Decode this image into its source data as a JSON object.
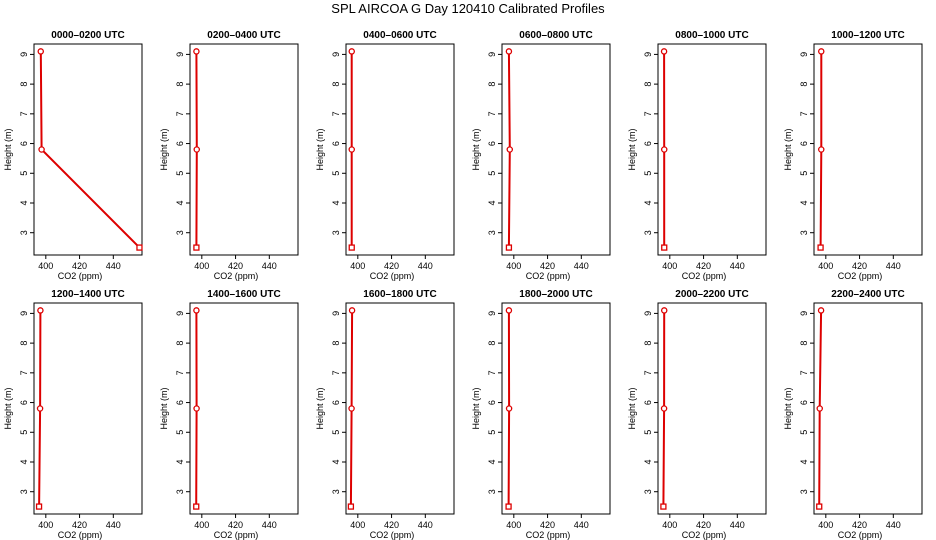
{
  "title": "SPL AIRCOA G  Day 120410  Calibrated Profiles",
  "colors": {
    "profile": "#dd0000",
    "axis": "#000000"
  },
  "chart_data": [
    {
      "type": "line",
      "title": "0000–0200 UTC",
      "xlabel": "CO2 (ppm)",
      "ylabel": "Height (m)",
      "xlim": [
        393,
        457
      ],
      "ylim": [
        2.25,
        9.35
      ],
      "xticks": [
        400,
        420,
        440
      ],
      "yticks": [
        3,
        4,
        5,
        6,
        7,
        8,
        9
      ],
      "grid": false,
      "series": [
        {
          "points": [
            [
              455.5,
              2.5
            ],
            [
              397.5,
              5.8
            ],
            [
              397,
              9.1
            ]
          ]
        }
      ]
    },
    {
      "type": "line",
      "title": "0200–0400 UTC",
      "xlabel": "CO2 (ppm)",
      "ylabel": "Height (m)",
      "xlim": [
        393,
        457
      ],
      "ylim": [
        2.25,
        9.35
      ],
      "xticks": [
        400,
        420,
        440
      ],
      "yticks": [
        3,
        4,
        5,
        6,
        7,
        8,
        9
      ],
      "grid": false,
      "series": [
        {
          "points": [
            [
              396.8,
              2.5
            ],
            [
              397,
              5.8
            ],
            [
              396.8,
              9.1
            ]
          ]
        }
      ]
    },
    {
      "type": "line",
      "title": "0400–0600 UTC",
      "xlabel": "CO2 (ppm)",
      "ylabel": "Height (m)",
      "xlim": [
        393,
        457
      ],
      "ylim": [
        2.25,
        9.35
      ],
      "xticks": [
        400,
        420,
        440
      ],
      "yticks": [
        3,
        4,
        5,
        6,
        7,
        8,
        9
      ],
      "grid": false,
      "series": [
        {
          "points": [
            [
              396.4,
              2.5
            ],
            [
              396.4,
              5.8
            ],
            [
              396.4,
              9.1
            ]
          ]
        }
      ]
    },
    {
      "type": "line",
      "title": "0600–0800 UTC",
      "xlabel": "CO2 (ppm)",
      "ylabel": "Height (m)",
      "xlim": [
        393,
        457
      ],
      "ylim": [
        2.25,
        9.35
      ],
      "xticks": [
        400,
        420,
        440
      ],
      "yticks": [
        3,
        4,
        5,
        6,
        7,
        8,
        9
      ],
      "grid": false,
      "series": [
        {
          "points": [
            [
              397.1,
              2.5
            ],
            [
              397.6,
              5.8
            ],
            [
              397.1,
              9.1
            ]
          ]
        }
      ]
    },
    {
      "type": "line",
      "title": "0800–1000 UTC",
      "xlabel": "CO2 (ppm)",
      "ylabel": "Height (m)",
      "xlim": [
        393,
        457
      ],
      "ylim": [
        2.25,
        9.35
      ],
      "xticks": [
        400,
        420,
        440
      ],
      "yticks": [
        3,
        4,
        5,
        6,
        7,
        8,
        9
      ],
      "grid": false,
      "series": [
        {
          "points": [
            [
              396.7,
              2.5
            ],
            [
              396.7,
              5.8
            ],
            [
              396.6,
              9.1
            ]
          ]
        }
      ]
    },
    {
      "type": "line",
      "title": "1000–1200 UTC",
      "xlabel": "CO2 (ppm)",
      "ylabel": "Height (m)",
      "xlim": [
        393,
        457
      ],
      "ylim": [
        2.25,
        9.35
      ],
      "xticks": [
        400,
        420,
        440
      ],
      "yticks": [
        3,
        4,
        5,
        6,
        7,
        8,
        9
      ],
      "grid": false,
      "series": [
        {
          "points": [
            [
              396.9,
              2.5
            ],
            [
              397.3,
              5.8
            ],
            [
              397.3,
              9.1
            ]
          ]
        }
      ]
    },
    {
      "type": "line",
      "title": "1200–1400 UTC",
      "xlabel": "CO2 (ppm)",
      "ylabel": "Height (m)",
      "xlim": [
        393,
        457
      ],
      "ylim": [
        2.25,
        9.35
      ],
      "xticks": [
        400,
        420,
        440
      ],
      "yticks": [
        3,
        4,
        5,
        6,
        7,
        8,
        9
      ],
      "grid": false,
      "series": [
        {
          "points": [
            [
              396,
              2.5
            ],
            [
              396.6,
              5.8
            ],
            [
              396.8,
              9.1
            ]
          ]
        }
      ]
    },
    {
      "type": "line",
      "title": "1400–1600 UTC",
      "xlabel": "CO2 (ppm)",
      "ylabel": "Height (m)",
      "xlim": [
        393,
        457
      ],
      "ylim": [
        2.25,
        9.35
      ],
      "xticks": [
        400,
        420,
        440
      ],
      "yticks": [
        3,
        4,
        5,
        6,
        7,
        8,
        9
      ],
      "grid": false,
      "series": [
        {
          "points": [
            [
              396.7,
              2.5
            ],
            [
              396.9,
              5.8
            ],
            [
              396.8,
              9.1
            ]
          ]
        }
      ]
    },
    {
      "type": "line",
      "title": "1600–1800 UTC",
      "xlabel": "CO2 (ppm)",
      "ylabel": "Height (m)",
      "xlim": [
        393,
        457
      ],
      "ylim": [
        2.25,
        9.35
      ],
      "xticks": [
        400,
        420,
        440
      ],
      "yticks": [
        3,
        4,
        5,
        6,
        7,
        8,
        9
      ],
      "grid": false,
      "series": [
        {
          "points": [
            [
              395.9,
              2.5
            ],
            [
              396.3,
              5.8
            ],
            [
              396.6,
              9.1
            ]
          ]
        }
      ]
    },
    {
      "type": "line",
      "title": "1800–2000 UTC",
      "xlabel": "CO2 (ppm)",
      "ylabel": "Height (m)",
      "xlim": [
        393,
        457
      ],
      "ylim": [
        2.25,
        9.35
      ],
      "xticks": [
        400,
        420,
        440
      ],
      "yticks": [
        3,
        4,
        5,
        6,
        7,
        8,
        9
      ],
      "grid": false,
      "series": [
        {
          "points": [
            [
              396.9,
              2.5
            ],
            [
              397.2,
              5.8
            ],
            [
              397.1,
              9.1
            ]
          ]
        }
      ]
    },
    {
      "type": "line",
      "title": "2000–2200 UTC",
      "xlabel": "CO2 (ppm)",
      "ylabel": "Height (m)",
      "xlim": [
        393,
        457
      ],
      "ylim": [
        2.25,
        9.35
      ],
      "xticks": [
        400,
        420,
        440
      ],
      "yticks": [
        3,
        4,
        5,
        6,
        7,
        8,
        9
      ],
      "grid": false,
      "series": [
        {
          "points": [
            [
              396.2,
              2.5
            ],
            [
              396.6,
              5.8
            ],
            [
              396.7,
              9.1
            ]
          ]
        }
      ]
    },
    {
      "type": "line",
      "title": "2200–2400 UTC",
      "xlabel": "CO2 (ppm)",
      "ylabel": "Height (m)",
      "xlim": [
        393,
        457
      ],
      "ylim": [
        2.25,
        9.35
      ],
      "xticks": [
        400,
        420,
        440
      ],
      "yticks": [
        3,
        4,
        5,
        6,
        7,
        8,
        9
      ],
      "grid": false,
      "series": [
        {
          "points": [
            [
              396.1,
              2.5
            ],
            [
              396.4,
              5.8
            ],
            [
              397.2,
              9.1
            ]
          ]
        }
      ]
    }
  ]
}
